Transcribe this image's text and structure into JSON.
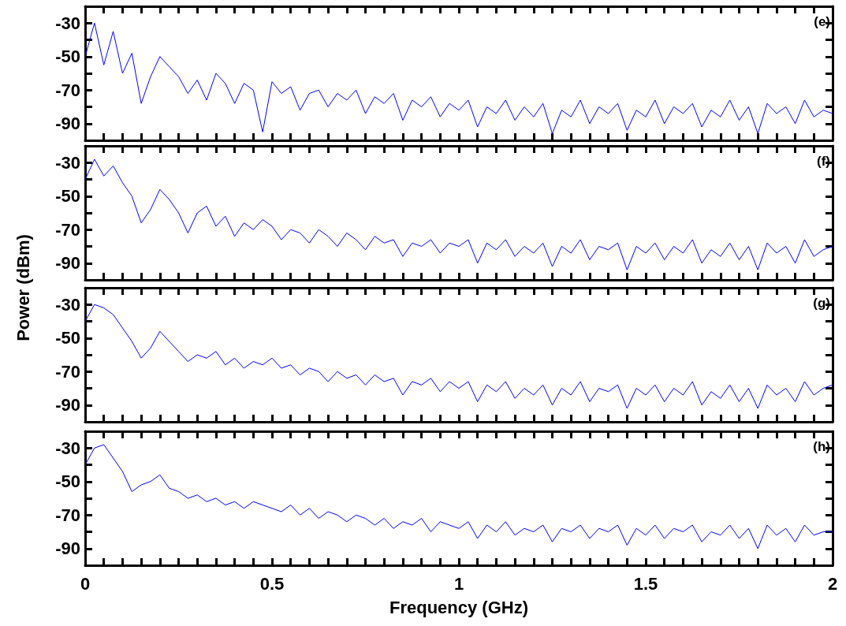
{
  "chart_data": [
    {
      "type": "line",
      "annotations": [
        "(e)"
      ],
      "marker": "none",
      "grid": false,
      "tick_labels": "y",
      "x": [
        0,
        0.025,
        0.05,
        0.075,
        0.1,
        0.125,
        0.15,
        0.175,
        0.2,
        0.225,
        0.25,
        0.275,
        0.3,
        0.325,
        0.35,
        0.375,
        0.4,
        0.425,
        0.45,
        0.475,
        0.5,
        0.525,
        0.55,
        0.575,
        0.6,
        0.625,
        0.65,
        0.675,
        0.7,
        0.725,
        0.75,
        0.775,
        0.8,
        0.825,
        0.85,
        0.875,
        0.9,
        0.925,
        0.95,
        0.975,
        1,
        1.025,
        1.05,
        1.075,
        1.1,
        1.125,
        1.15,
        1.175,
        1.2,
        1.225,
        1.25,
        1.275,
        1.3,
        1.325,
        1.35,
        1.375,
        1.4,
        1.425,
        1.45,
        1.475,
        1.5,
        1.525,
        1.55,
        1.575,
        1.6,
        1.625,
        1.65,
        1.675,
        1.7,
        1.725,
        1.75,
        1.775,
        1.8,
        1.825,
        1.85,
        1.875,
        1.9,
        1.925,
        1.95,
        1.975,
        2
      ],
      "series": [
        {
          "color": "#0000ff",
          "values": [
            -50,
            -30,
            -55,
            -35,
            -60,
            -48,
            -78,
            -62,
            -50,
            -56,
            -62,
            -72,
            -64,
            -76,
            -60,
            -66,
            -78,
            -66,
            -70,
            -95,
            -65,
            -72,
            -68,
            -82,
            -72,
            -70,
            -80,
            -72,
            -76,
            -70,
            -84,
            -74,
            -78,
            -72,
            -88,
            -76,
            -80,
            -74,
            -86,
            -78,
            -82,
            -76,
            -92,
            -80,
            -84,
            -76,
            -88,
            -80,
            -86,
            -78,
            -96,
            -82,
            -86,
            -76,
            -90,
            -80,
            -84,
            -78,
            -94,
            -82,
            -86,
            -76,
            -90,
            -80,
            -84,
            -78,
            -92,
            -82,
            -86,
            -76,
            -88,
            -80,
            -96,
            -78,
            -84,
            -80,
            -90,
            -76,
            -86,
            -82,
            -84
          ]
        }
      ],
      "xlim": [
        0,
        2
      ],
      "xticks": [
        0,
        {
          "value": 0.05,
          "label": null
        },
        {
          "value": 0.1,
          "label": null
        },
        {
          "value": 0.15,
          "label": null
        },
        {
          "value": 0.2,
          "label": null
        },
        {
          "value": 0.25,
          "label": null
        },
        {
          "value": 0.3,
          "label": null
        },
        {
          "value": 0.35,
          "label": null
        },
        {
          "value": 0.4,
          "label": null
        },
        {
          "value": 0.45,
          "label": null
        },
        0.5,
        {
          "value": 0.55,
          "label": null
        },
        {
          "value": 0.6,
          "label": null
        },
        {
          "value": 0.65,
          "label": null
        },
        {
          "value": 0.7,
          "label": null
        },
        {
          "value": 0.75,
          "label": null
        },
        {
          "value": 0.8,
          "label": null
        },
        {
          "value": 0.85,
          "label": null
        },
        {
          "value": 0.9,
          "label": null
        },
        {
          "value": 0.95,
          "label": null
        },
        1,
        {
          "value": 1.05,
          "label": null
        },
        {
          "value": 1.1,
          "label": null
        },
        {
          "value": 1.15,
          "label": null
        },
        {
          "value": 1.2,
          "label": null
        },
        {
          "value": 1.25,
          "label": null
        },
        {
          "value": 1.3,
          "label": null
        },
        {
          "value": 1.35,
          "label": null
        },
        {
          "value": 1.4,
          "label": null
        },
        {
          "value": 1.45,
          "label": null
        },
        1.5,
        {
          "value": 1.55,
          "label": null
        },
        {
          "value": 1.6,
          "label": null
        },
        {
          "value": 1.65,
          "label": null
        },
        {
          "value": 1.7,
          "label": null
        },
        {
          "value": 1.75,
          "label": null
        },
        {
          "value": 1.8,
          "label": null
        },
        {
          "value": 1.85,
          "label": null
        },
        {
          "value": 1.9,
          "label": null
        },
        {
          "value": 1.95,
          "label": null
        },
        2
      ],
      "ylim": [
        -100,
        -20
      ],
      "yticks": [
        -90,
        {
          "value": -80,
          "label": null
        },
        -70,
        {
          "value": -60,
          "label": null
        },
        -50,
        {
          "value": -40,
          "label": null
        },
        -30
      ]
    },
    {
      "type": "line",
      "ylabel": "Power (dBm)",
      "annotations": [
        "(f)"
      ],
      "marker": "none",
      "grid": false,
      "tick_labels": "y",
      "x": [
        0,
        0.025,
        0.05,
        0.075,
        0.1,
        0.125,
        0.15,
        0.175,
        0.2,
        0.225,
        0.25,
        0.275,
        0.3,
        0.325,
        0.35,
        0.375,
        0.4,
        0.425,
        0.45,
        0.475,
        0.5,
        0.525,
        0.55,
        0.575,
        0.6,
        0.625,
        0.65,
        0.675,
        0.7,
        0.725,
        0.75,
        0.775,
        0.8,
        0.825,
        0.85,
        0.875,
        0.9,
        0.925,
        0.95,
        0.975,
        1,
        1.025,
        1.05,
        1.075,
        1.1,
        1.125,
        1.15,
        1.175,
        1.2,
        1.225,
        1.25,
        1.275,
        1.3,
        1.325,
        1.35,
        1.375,
        1.4,
        1.425,
        1.45,
        1.475,
        1.5,
        1.525,
        1.55,
        1.575,
        1.6,
        1.625,
        1.65,
        1.675,
        1.7,
        1.725,
        1.75,
        1.775,
        1.8,
        1.825,
        1.85,
        1.875,
        1.9,
        1.925,
        1.95,
        1.975,
        2
      ],
      "series": [
        {
          "color": "#0000ff",
          "values": [
            -40,
            -28,
            -38,
            -32,
            -42,
            -50,
            -66,
            -58,
            -46,
            -52,
            -60,
            -72,
            -60,
            -56,
            -68,
            -62,
            -74,
            -66,
            -70,
            -64,
            -68,
            -76,
            -70,
            -72,
            -78,
            -70,
            -74,
            -80,
            -72,
            -76,
            -82,
            -74,
            -78,
            -76,
            -86,
            -78,
            -80,
            -76,
            -84,
            -78,
            -80,
            -76,
            -90,
            -78,
            -82,
            -76,
            -86,
            -80,
            -84,
            -78,
            -92,
            -80,
            -84,
            -76,
            -88,
            -80,
            -82,
            -78,
            -94,
            -80,
            -84,
            -78,
            -88,
            -80,
            -84,
            -76,
            -90,
            -82,
            -86,
            -78,
            -88,
            -80,
            -94,
            -78,
            -84,
            -80,
            -90,
            -76,
            -86,
            -82,
            -80
          ]
        }
      ],
      "xlim": [
        0,
        2
      ],
      "xticks": [
        0,
        {
          "value": 0.05,
          "label": null
        },
        {
          "value": 0.1,
          "label": null
        },
        {
          "value": 0.15,
          "label": null
        },
        {
          "value": 0.2,
          "label": null
        },
        {
          "value": 0.25,
          "label": null
        },
        {
          "value": 0.3,
          "label": null
        },
        {
          "value": 0.35,
          "label": null
        },
        {
          "value": 0.4,
          "label": null
        },
        {
          "value": 0.45,
          "label": null
        },
        0.5,
        {
          "value": 0.55,
          "label": null
        },
        {
          "value": 0.6,
          "label": null
        },
        {
          "value": 0.65,
          "label": null
        },
        {
          "value": 0.7,
          "label": null
        },
        {
          "value": 0.75,
          "label": null
        },
        {
          "value": 0.8,
          "label": null
        },
        {
          "value": 0.85,
          "label": null
        },
        {
          "value": 0.9,
          "label": null
        },
        {
          "value": 0.95,
          "label": null
        },
        1,
        {
          "value": 1.05,
          "label": null
        },
        {
          "value": 1.1,
          "label": null
        },
        {
          "value": 1.15,
          "label": null
        },
        {
          "value": 1.2,
          "label": null
        },
        {
          "value": 1.25,
          "label": null
        },
        {
          "value": 1.3,
          "label": null
        },
        {
          "value": 1.35,
          "label": null
        },
        {
          "value": 1.4,
          "label": null
        },
        {
          "value": 1.45,
          "label": null
        },
        1.5,
        {
          "value": 1.55,
          "label": null
        },
        {
          "value": 1.6,
          "label": null
        },
        {
          "value": 1.65,
          "label": null
        },
        {
          "value": 1.7,
          "label": null
        },
        {
          "value": 1.75,
          "label": null
        },
        {
          "value": 1.8,
          "label": null
        },
        {
          "value": 1.85,
          "label": null
        },
        {
          "value": 1.9,
          "label": null
        },
        {
          "value": 1.95,
          "label": null
        },
        2
      ],
      "ylim": [
        -100,
        -20
      ],
      "yticks": [
        -90,
        {
          "value": -80,
          "label": null
        },
        -70,
        {
          "value": -60,
          "label": null
        },
        -50,
        {
          "value": -40,
          "label": null
        },
        -30
      ]
    },
    {
      "type": "line",
      "annotations": [
        "(g)"
      ],
      "marker": "none",
      "grid": false,
      "tick_labels": "y",
      "x": [
        0,
        0.025,
        0.05,
        0.075,
        0.1,
        0.125,
        0.15,
        0.175,
        0.2,
        0.225,
        0.25,
        0.275,
        0.3,
        0.325,
        0.35,
        0.375,
        0.4,
        0.425,
        0.45,
        0.475,
        0.5,
        0.525,
        0.55,
        0.575,
        0.6,
        0.625,
        0.65,
        0.675,
        0.7,
        0.725,
        0.75,
        0.775,
        0.8,
        0.825,
        0.85,
        0.875,
        0.9,
        0.925,
        0.95,
        0.975,
        1,
        1.025,
        1.05,
        1.075,
        1.1,
        1.125,
        1.15,
        1.175,
        1.2,
        1.225,
        1.25,
        1.275,
        1.3,
        1.325,
        1.35,
        1.375,
        1.4,
        1.425,
        1.45,
        1.475,
        1.5,
        1.525,
        1.55,
        1.575,
        1.6,
        1.625,
        1.65,
        1.675,
        1.7,
        1.725,
        1.75,
        1.775,
        1.8,
        1.825,
        1.85,
        1.875,
        1.9,
        1.925,
        1.95,
        1.975,
        2
      ],
      "series": [
        {
          "color": "#0000ff",
          "values": [
            -40,
            -30,
            -32,
            -36,
            -44,
            -52,
            -62,
            -56,
            -46,
            -52,
            -58,
            -64,
            -60,
            -62,
            -58,
            -66,
            -62,
            -68,
            -64,
            -66,
            -62,
            -68,
            -66,
            -72,
            -68,
            -70,
            -76,
            -70,
            -74,
            -72,
            -78,
            -72,
            -76,
            -74,
            -84,
            -76,
            -78,
            -74,
            -82,
            -76,
            -80,
            -76,
            -88,
            -78,
            -82,
            -76,
            -86,
            -80,
            -84,
            -78,
            -90,
            -80,
            -84,
            -76,
            -88,
            -80,
            -82,
            -78,
            -92,
            -80,
            -84,
            -78,
            -88,
            -80,
            -84,
            -76,
            -90,
            -82,
            -86,
            -78,
            -88,
            -80,
            -92,
            -78,
            -84,
            -80,
            -88,
            -76,
            -84,
            -80,
            -78
          ]
        }
      ],
      "xlim": [
        0,
        2
      ],
      "xticks": [
        0,
        {
          "value": 0.05,
          "label": null
        },
        {
          "value": 0.1,
          "label": null
        },
        {
          "value": 0.15,
          "label": null
        },
        {
          "value": 0.2,
          "label": null
        },
        {
          "value": 0.25,
          "label": null
        },
        {
          "value": 0.3,
          "label": null
        },
        {
          "value": 0.35,
          "label": null
        },
        {
          "value": 0.4,
          "label": null
        },
        {
          "value": 0.45,
          "label": null
        },
        0.5,
        {
          "value": 0.55,
          "label": null
        },
        {
          "value": 0.6,
          "label": null
        },
        {
          "value": 0.65,
          "label": null
        },
        {
          "value": 0.7,
          "label": null
        },
        {
          "value": 0.75,
          "label": null
        },
        {
          "value": 0.8,
          "label": null
        },
        {
          "value": 0.85,
          "label": null
        },
        {
          "value": 0.9,
          "label": null
        },
        {
          "value": 0.95,
          "label": null
        },
        1,
        {
          "value": 1.05,
          "label": null
        },
        {
          "value": 1.1,
          "label": null
        },
        {
          "value": 1.15,
          "label": null
        },
        {
          "value": 1.2,
          "label": null
        },
        {
          "value": 1.25,
          "label": null
        },
        {
          "value": 1.3,
          "label": null
        },
        {
          "value": 1.35,
          "label": null
        },
        {
          "value": 1.4,
          "label": null
        },
        {
          "value": 1.45,
          "label": null
        },
        1.5,
        {
          "value": 1.55,
          "label": null
        },
        {
          "value": 1.6,
          "label": null
        },
        {
          "value": 1.65,
          "label": null
        },
        {
          "value": 1.7,
          "label": null
        },
        {
          "value": 1.75,
          "label": null
        },
        {
          "value": 1.8,
          "label": null
        },
        {
          "value": 1.85,
          "label": null
        },
        {
          "value": 1.9,
          "label": null
        },
        {
          "value": 1.95,
          "label": null
        },
        2
      ],
      "ylim": [
        -100,
        -20
      ],
      "yticks": [
        -90,
        {
          "value": -80,
          "label": null
        },
        -70,
        {
          "value": -60,
          "label": null
        },
        -50,
        {
          "value": -40,
          "label": null
        },
        -30
      ]
    },
    {
      "type": "line",
      "xlabel": "Frequency (GHz)",
      "annotations": [
        "(h)"
      ],
      "marker": "none",
      "grid": false,
      "x": [
        0,
        0.025,
        0.05,
        0.075,
        0.1,
        0.125,
        0.15,
        0.175,
        0.2,
        0.225,
        0.25,
        0.275,
        0.3,
        0.325,
        0.35,
        0.375,
        0.4,
        0.425,
        0.45,
        0.475,
        0.5,
        0.525,
        0.55,
        0.575,
        0.6,
        0.625,
        0.65,
        0.675,
        0.7,
        0.725,
        0.75,
        0.775,
        0.8,
        0.825,
        0.85,
        0.875,
        0.9,
        0.925,
        0.95,
        0.975,
        1,
        1.025,
        1.05,
        1.075,
        1.1,
        1.125,
        1.15,
        1.175,
        1.2,
        1.225,
        1.25,
        1.275,
        1.3,
        1.325,
        1.35,
        1.375,
        1.4,
        1.425,
        1.45,
        1.475,
        1.5,
        1.525,
        1.55,
        1.575,
        1.6,
        1.625,
        1.65,
        1.675,
        1.7,
        1.725,
        1.75,
        1.775,
        1.8,
        1.825,
        1.85,
        1.875,
        1.9,
        1.925,
        1.95,
        1.975,
        2
      ],
      "series": [
        {
          "color": "#0000ff",
          "values": [
            -40,
            -30,
            -28,
            -36,
            -44,
            -56,
            -52,
            -50,
            -46,
            -54,
            -56,
            -60,
            -58,
            -62,
            -60,
            -64,
            -62,
            -66,
            -62,
            -64,
            -66,
            -68,
            -64,
            -70,
            -66,
            -72,
            -68,
            -70,
            -74,
            -70,
            -72,
            -76,
            -72,
            -78,
            -74,
            -76,
            -72,
            -80,
            -74,
            -76,
            -78,
            -74,
            -84,
            -76,
            -80,
            -74,
            -82,
            -78,
            -80,
            -76,
            -86,
            -78,
            -80,
            -76,
            -84,
            -78,
            -80,
            -76,
            -88,
            -78,
            -82,
            -76,
            -84,
            -78,
            -80,
            -76,
            -86,
            -80,
            -82,
            -76,
            -84,
            -78,
            -90,
            -76,
            -82,
            -78,
            -86,
            -76,
            -82,
            -80,
            -80
          ]
        }
      ],
      "xlim": [
        0,
        2
      ],
      "xticks": [
        0,
        {
          "value": 0.05,
          "label": null
        },
        {
          "value": 0.1,
          "label": null
        },
        {
          "value": 0.15,
          "label": null
        },
        {
          "value": 0.2,
          "label": null
        },
        {
          "value": 0.25,
          "label": null
        },
        {
          "value": 0.3,
          "label": null
        },
        {
          "value": 0.35,
          "label": null
        },
        {
          "value": 0.4,
          "label": null
        },
        {
          "value": 0.45,
          "label": null
        },
        0.5,
        {
          "value": 0.55,
          "label": null
        },
        {
          "value": 0.6,
          "label": null
        },
        {
          "value": 0.65,
          "label": null
        },
        {
          "value": 0.7,
          "label": null
        },
        {
          "value": 0.75,
          "label": null
        },
        {
          "value": 0.8,
          "label": null
        },
        {
          "value": 0.85,
          "label": null
        },
        {
          "value": 0.9,
          "label": null
        },
        {
          "value": 0.95,
          "label": null
        },
        1,
        {
          "value": 1.05,
          "label": null
        },
        {
          "value": 1.1,
          "label": null
        },
        {
          "value": 1.15,
          "label": null
        },
        {
          "value": 1.2,
          "label": null
        },
        {
          "value": 1.25,
          "label": null
        },
        {
          "value": 1.3,
          "label": null
        },
        {
          "value": 1.35,
          "label": null
        },
        {
          "value": 1.4,
          "label": null
        },
        {
          "value": 1.45,
          "label": null
        },
        1.5,
        {
          "value": 1.55,
          "label": null
        },
        {
          "value": 1.6,
          "label": null
        },
        {
          "value": 1.65,
          "label": null
        },
        {
          "value": 1.7,
          "label": null
        },
        {
          "value": 1.75,
          "label": null
        },
        {
          "value": 1.8,
          "label": null
        },
        {
          "value": 1.85,
          "label": null
        },
        {
          "value": 1.9,
          "label": null
        },
        {
          "value": 1.95,
          "label": null
        },
        2
      ],
      "ylim": [
        -100,
        -20
      ],
      "yticks": [
        -90,
        {
          "value": -80,
          "label": null
        },
        -70,
        {
          "value": -60,
          "label": null
        },
        -50,
        {
          "value": -40,
          "label": null
        },
        -30
      ]
    }
  ]
}
